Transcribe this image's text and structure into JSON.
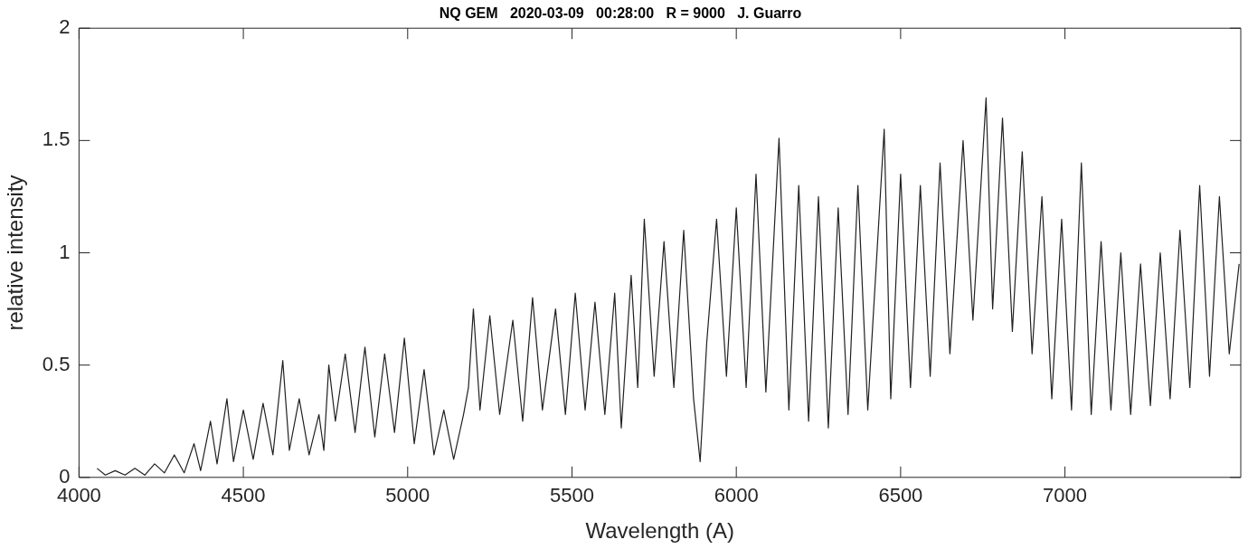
{
  "chart_data": {
    "type": "line",
    "title": "NQ GEM   2020-03-09   00:28:00   R = 9000   J. Guarro",
    "xlabel": "Wavelength (A)",
    "ylabel": "relative intensity",
    "xlim": [
      4000,
      7535
    ],
    "xticks": [
      4000,
      4500,
      5000,
      5500,
      6000,
      6500,
      7000
    ],
    "ylim": [
      0,
      2
    ],
    "yticks": [
      0,
      0.5,
      1,
      1.5,
      2
    ],
    "legend": false,
    "marker": "none",
    "line_style": "solid",
    "series": [
      {
        "color": "#231f20",
        "x": [
          4055,
          4080,
          4110,
          4140,
          4170,
          4200,
          4230,
          4260,
          4290,
          4320,
          4350,
          4370,
          4400,
          4420,
          4450,
          4470,
          4500,
          4530,
          4560,
          4590,
          4620,
          4640,
          4670,
          4700,
          4730,
          4745,
          4760,
          4780,
          4810,
          4840,
          4870,
          4900,
          4930,
          4960,
          4990,
          5020,
          5050,
          5080,
          5110,
          5140,
          5170,
          5185,
          5200,
          5220,
          5250,
          5280,
          5320,
          5350,
          5380,
          5410,
          5450,
          5480,
          5510,
          5540,
          5570,
          5600,
          5630,
          5650,
          5680,
          5700,
          5720,
          5750,
          5780,
          5810,
          5840,
          5870,
          5890,
          5910,
          5940,
          5970,
          6000,
          6030,
          6060,
          6090,
          6130,
          6160,
          6190,
          6220,
          6250,
          6280,
          6310,
          6340,
          6370,
          6400,
          6450,
          6470,
          6500,
          6530,
          6560,
          6590,
          6620,
          6650,
          6690,
          6720,
          6760,
          6780,
          6810,
          6840,
          6870,
          6900,
          6930,
          6960,
          6990,
          7020,
          7050,
          7080,
          7110,
          7140,
          7170,
          7200,
          7230,
          7260,
          7290,
          7320,
          7350,
          7380,
          7410,
          7440,
          7470,
          7500,
          7530
        ],
        "values": [
          0.04,
          0.01,
          0.03,
          0.01,
          0.04,
          0.01,
          0.06,
          0.02,
          0.1,
          0.02,
          0.15,
          0.03,
          0.25,
          0.06,
          0.35,
          0.07,
          0.3,
          0.08,
          0.33,
          0.1,
          0.52,
          0.12,
          0.35,
          0.1,
          0.28,
          0.12,
          0.5,
          0.25,
          0.55,
          0.2,
          0.58,
          0.18,
          0.55,
          0.2,
          0.62,
          0.15,
          0.48,
          0.1,
          0.3,
          0.08,
          0.28,
          0.4,
          0.75,
          0.3,
          0.72,
          0.28,
          0.7,
          0.25,
          0.8,
          0.3,
          0.75,
          0.28,
          0.82,
          0.3,
          0.78,
          0.28,
          0.82,
          0.22,
          0.9,
          0.4,
          1.15,
          0.45,
          1.05,
          0.4,
          1.1,
          0.35,
          0.07,
          0.6,
          1.15,
          0.45,
          1.2,
          0.4,
          1.35,
          0.38,
          1.51,
          0.3,
          1.3,
          0.25,
          1.25,
          0.22,
          1.2,
          0.28,
          1.3,
          0.3,
          1.55,
          0.35,
          1.35,
          0.4,
          1.3,
          0.45,
          1.4,
          0.55,
          1.5,
          0.7,
          1.69,
          0.75,
          1.6,
          0.65,
          1.45,
          0.55,
          1.25,
          0.35,
          1.15,
          0.3,
          1.4,
          0.28,
          1.05,
          0.3,
          1.0,
          0.28,
          0.95,
          0.32,
          1.0,
          0.35,
          1.1,
          0.4,
          1.3,
          0.45,
          1.25,
          0.55,
          0.95
        ]
      }
    ]
  }
}
